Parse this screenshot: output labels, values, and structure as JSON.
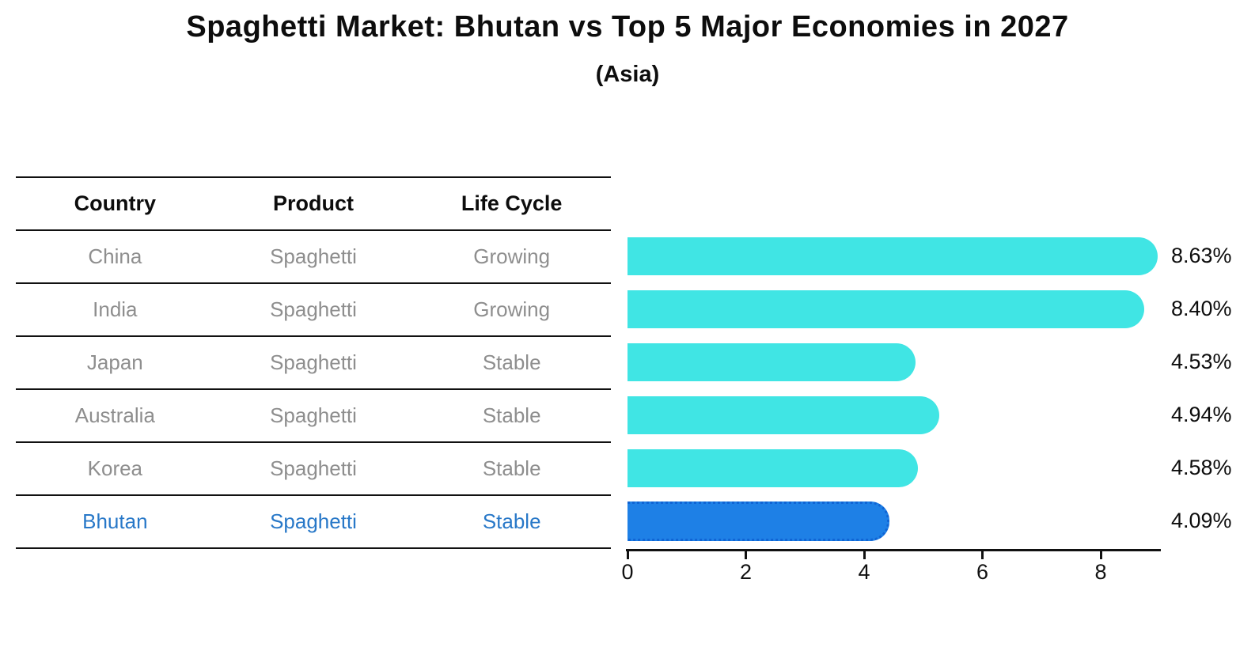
{
  "figure": {
    "title": "Spaghetti Market: Bhutan vs Top 5 Major Economies in 2027",
    "subtitle": "(Asia)"
  },
  "table": {
    "headers": [
      "Country",
      "Product",
      "Life Cycle"
    ],
    "rows": [
      {
        "country": "China",
        "product": "Spaghetti",
        "life_cycle": "Growing",
        "highlighted": false
      },
      {
        "country": "India",
        "product": "Spaghetti",
        "life_cycle": "Growing",
        "highlighted": false
      },
      {
        "country": "Japan",
        "product": "Spaghetti",
        "life_cycle": "Stable",
        "highlighted": false
      },
      {
        "country": "Australia",
        "product": "Spaghetti",
        "life_cycle": "Stable",
        "highlighted": false
      },
      {
        "country": "Korea",
        "product": "Spaghetti",
        "life_cycle": "Stable",
        "highlighted": false
      },
      {
        "country": "Bhutan",
        "product": "Spaghetti",
        "life_cycle": "Stable",
        "highlighted": true
      }
    ]
  },
  "chart_data": {
    "type": "bar",
    "orientation": "horizontal",
    "title": "Spaghetti Market: Bhutan vs Top 5 Major Economies in 2027",
    "subtitle": "(Asia)",
    "categories": [
      "China",
      "India",
      "Japan",
      "Australia",
      "Korea",
      "Bhutan"
    ],
    "values": [
      8.63,
      8.4,
      4.53,
      4.94,
      4.58,
      4.09
    ],
    "value_labels": [
      "8.63%",
      "8.40%",
      "4.53%",
      "4.94%",
      "4.58%",
      "4.09%"
    ],
    "x_ticks": [
      0,
      2,
      4,
      6,
      8
    ],
    "xlim": [
      0,
      9.0
    ],
    "grid": false,
    "legend": false,
    "highlight_index": 5,
    "colors": {
      "bar": "#40E5E4",
      "highlight_bar": "#1E80E6",
      "highlight_border": "#1064D4",
      "highlight_text": "#2878C8",
      "table_text": "#8E8E8E",
      "axis": "#111111"
    }
  }
}
